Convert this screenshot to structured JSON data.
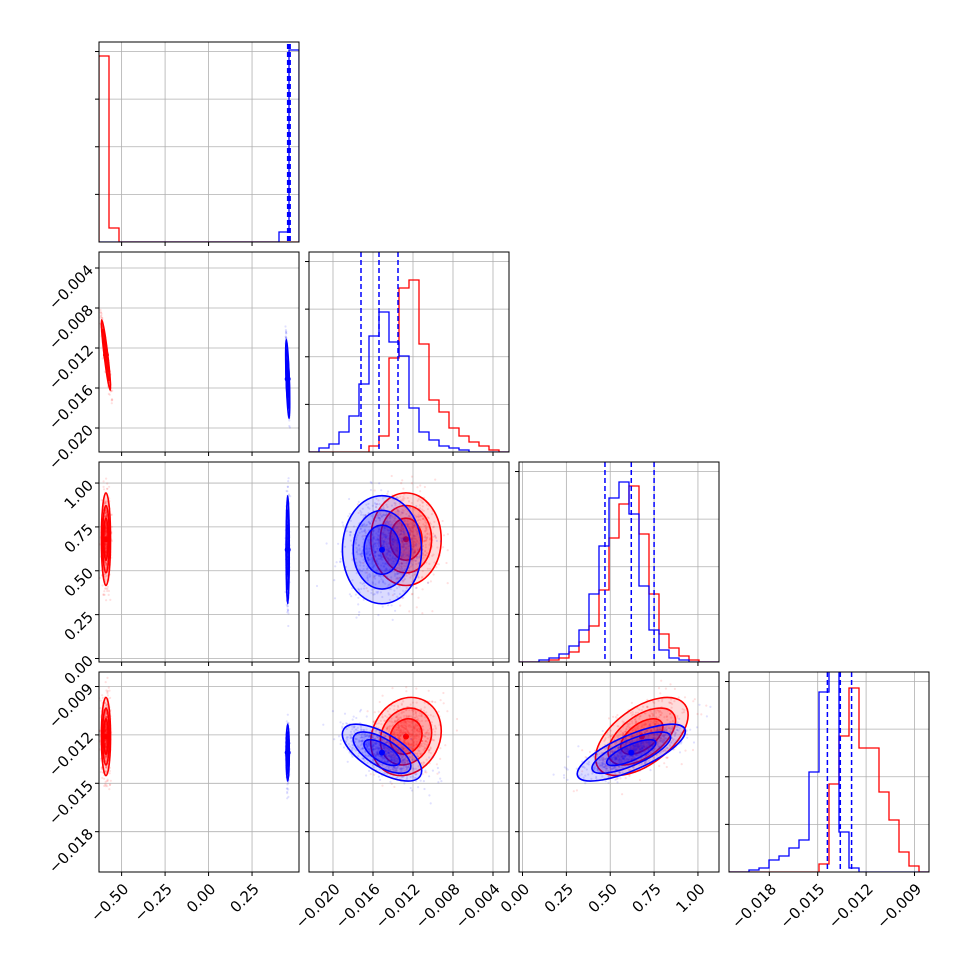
{
  "chart_data": {
    "type": "corner",
    "description_free": true,
    "colors": {
      "red": "#ff0000",
      "blue": "#0000ff",
      "grid": "#b0b0b0",
      "axis": "#000000"
    },
    "parameters": [
      {
        "range": [
          -0.63,
          0.52
        ],
        "ticks": [
          -0.5,
          -0.25,
          0.0,
          0.25
        ],
        "tick_labels": [
          "−0.50",
          "−0.25",
          "0.00",
          "0.25"
        ]
      },
      {
        "range": [
          -0.0224,
          -0.0024
        ],
        "ticks": [
          -0.02,
          -0.016,
          -0.012,
          -0.008,
          -0.004
        ],
        "tick_labels": [
          "−0.020",
          "−0.016",
          "−0.012",
          "−0.008",
          "−0.004"
        ]
      },
      {
        "range": [
          -0.02,
          1.12
        ],
        "ticks": [
          0.0,
          0.25,
          0.5,
          0.75,
          1.0
        ],
        "tick_labels": [
          "0.00",
          "0.25",
          "0.50",
          "0.75",
          "1.00"
        ]
      },
      {
        "range": [
          -0.0205,
          -0.0081
        ],
        "ticks": [
          -0.018,
          -0.015,
          -0.012,
          -0.009
        ],
        "tick_labels": [
          "−0.018",
          "−0.015",
          "−0.012",
          "−0.009"
        ]
      }
    ],
    "series": [
      {
        "color": "red",
        "mean": [
          -0.59,
          -0.0127,
          0.68,
          -0.0121
        ],
        "sd": [
          0.012,
          0.0016,
          0.12,
          0.0011
        ],
        "corr": [
          [
            0,
            1,
            -0.92
          ],
          [
            2,
            3,
            0.55
          ],
          [
            1,
            3,
            0.15
          ]
        ],
        "hist": [
          [
            0.93,
            0.07,
            0,
            0,
            0,
            0,
            0,
            0,
            0,
            0,
            0,
            0,
            0,
            0,
            0,
            0,
            0,
            0,
            0,
            0
          ],
          [
            0,
            0,
            0,
            0,
            0,
            0,
            0.03,
            0.08,
            0.47,
            0.82,
            0.86,
            0.54,
            0.26,
            0.2,
            0.12,
            0.08,
            0.05,
            0.03,
            0.01,
            0
          ],
          [
            0,
            0,
            0,
            0.01,
            0.02,
            0.05,
            0.1,
            0.18,
            0.36,
            0.62,
            0.79,
            0.88,
            0.64,
            0.34,
            0.14,
            0.07,
            0.03,
            0.01,
            0,
            0
          ],
          [
            0,
            0,
            0,
            0,
            0,
            0,
            0,
            0,
            0,
            0.04,
            0.44,
            0.68,
            0.92,
            0.62,
            0.62,
            0.4,
            0.26,
            0.1,
            0.03,
            0
          ]
        ]
      },
      {
        "color": "blue",
        "mean": [
          0.455,
          -0.0151,
          0.62,
          -0.0131
        ],
        "sd": [
          0.004,
          0.0018,
          0.14,
          0.0008
        ],
        "corr": [
          [
            0,
            1,
            -0.9
          ],
          [
            2,
            3,
            0.75
          ],
          [
            1,
            3,
            -0.65
          ]
        ],
        "hist": [
          [
            0,
            0,
            0,
            0,
            0,
            0,
            0,
            0,
            0,
            0,
            0,
            0,
            0,
            0,
            0,
            0,
            0,
            0,
            0.05,
            0.96
          ],
          [
            0,
            0.02,
            0.04,
            0.1,
            0.18,
            0.34,
            0.58,
            0.7,
            0.55,
            0.48,
            0.22,
            0.1,
            0.06,
            0.03,
            0.02,
            0.01,
            0,
            0,
            0,
            0
          ],
          [
            0,
            0,
            0.01,
            0.02,
            0.04,
            0.08,
            0.16,
            0.34,
            0.58,
            0.82,
            0.9,
            0.74,
            0.38,
            0.16,
            0.06,
            0.02,
            0.01,
            0,
            0,
            0
          ],
          [
            0,
            0,
            0.01,
            0.02,
            0.06,
            0.08,
            0.12,
            0.16,
            0.5,
            0.9,
            1.05,
            0.2,
            0.02,
            0,
            0,
            0,
            0,
            0,
            0,
            0
          ]
        ]
      }
    ],
    "quantile_lines": [
      [],
      [
        -0.0172,
        -0.0154,
        -0.0135
      ],
      [
        0.47,
        0.62,
        0.75
      ],
      [
        -0.0144,
        -0.0136,
        -0.0129
      ]
    ],
    "grid": true,
    "legend": "none"
  }
}
